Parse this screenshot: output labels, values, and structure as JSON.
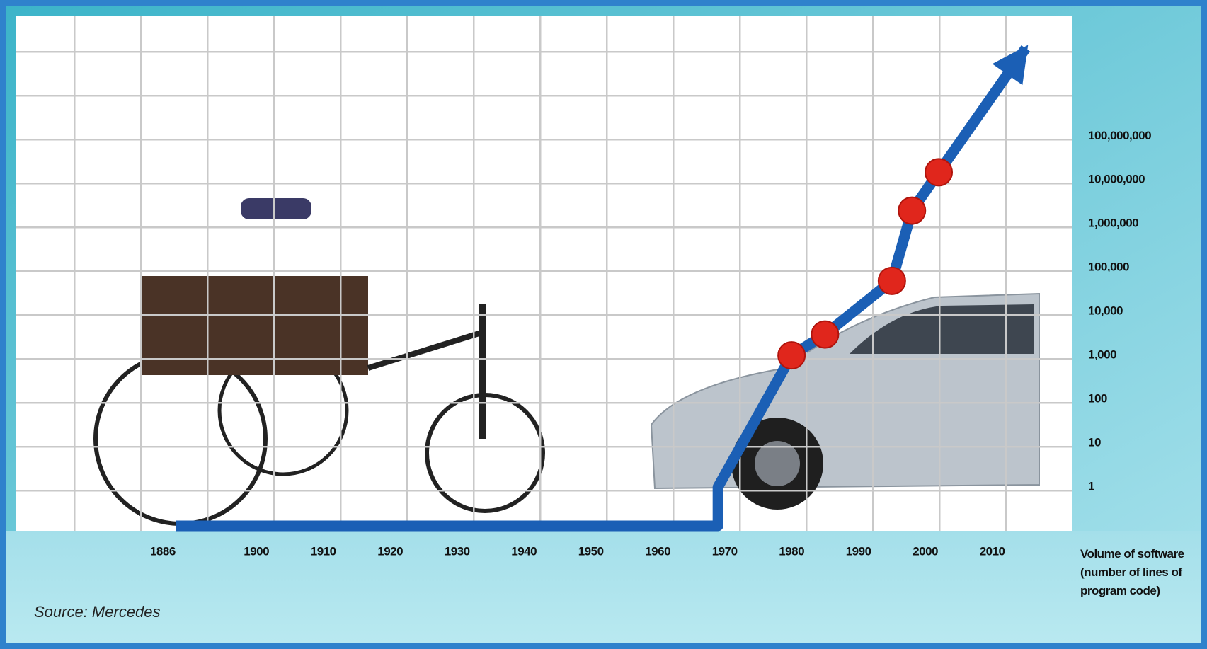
{
  "chart_data": {
    "type": "line",
    "yscale": "log",
    "xlim": [
      1864,
      2022
    ],
    "ylim": [
      0.1,
      56000000000
    ],
    "xticks": [
      1886,
      1900,
      1910,
      1920,
      1930,
      1940,
      1950,
      1960,
      1970,
      1980,
      1990,
      2000,
      2010
    ],
    "yticks": [
      1,
      10,
      100,
      {
        "value": 1000,
        "label": "1,000"
      },
      {
        "value": 10000,
        "label": "10,000"
      },
      {
        "value": 100000,
        "label": "100,000"
      },
      {
        "value": 1000000,
        "label": "1,000,000"
      },
      {
        "value": 10000000,
        "label": "10,000,000"
      },
      {
        "value": 100000000,
        "label": "100,000,000"
      }
    ],
    "y_axis_label": "Volume of software (number of lines of program code)",
    "source": "Source: Mercedes",
    "series": [
      {
        "mode": "line",
        "color": "#1b5fb5",
        "x": [
          1888,
          1969,
          1969,
          1980,
          1985,
          1995,
          1998,
          2002,
          2015
        ],
        "values": [
          0.13,
          0.13,
          1,
          1000,
          3000,
          50000,
          2000000,
          15000000,
          10000000000
        ]
      },
      {
        "mode": "markers",
        "color": "#e0261c",
        "x": [
          1980,
          1985,
          1995,
          1998,
          2002
        ],
        "values": [
          1000,
          3000,
          50000,
          2000000,
          15000000
        ]
      }
    ]
  }
}
